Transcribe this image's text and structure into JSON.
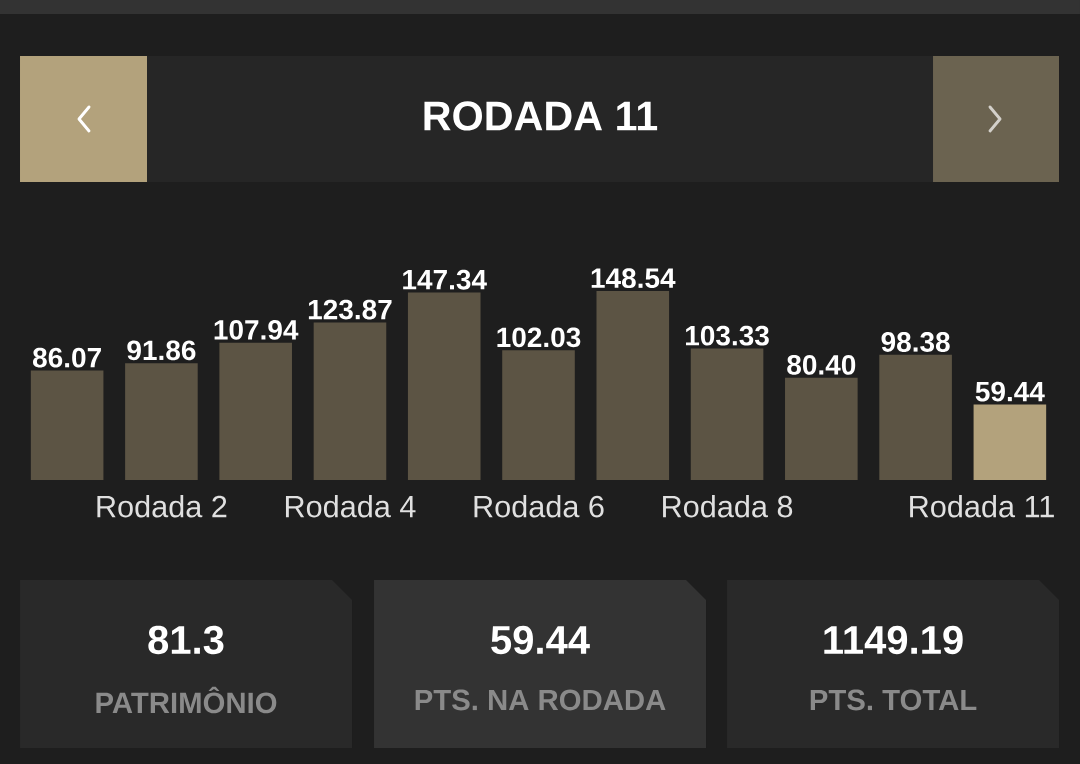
{
  "chart_data": {
    "type": "bar",
    "title": "RODADA 11",
    "categories": [
      null,
      "Rodada 2",
      null,
      "Rodada 4",
      null,
      "Rodada 6",
      null,
      "Rodada 8",
      null,
      null,
      "Rodada 11"
    ],
    "values": [
      86.07,
      91.86,
      107.94,
      123.87,
      147.34,
      102.03,
      148.54,
      103.33,
      80.4,
      98.38,
      59.44
    ],
    "value_labels": [
      "86.07",
      "91.86",
      "107.94",
      "123.87",
      "147.34",
      "102.03",
      "148.54",
      "103.33",
      "80.40",
      "98.38",
      "59.44"
    ],
    "colors": [
      "#5c5444",
      "#5c5444",
      "#5c5444",
      "#5c5444",
      "#5c5444",
      "#5c5444",
      "#5c5444",
      "#5c5444",
      "#5c5444",
      "#5c5444",
      "#b3a27c"
    ],
    "annotations": [
      "81.3",
      "PATRIMÔNIO",
      "59.44",
      "PTS. NA RODADA",
      "1149.19",
      "PTS. TOTAL"
    ]
  }
}
